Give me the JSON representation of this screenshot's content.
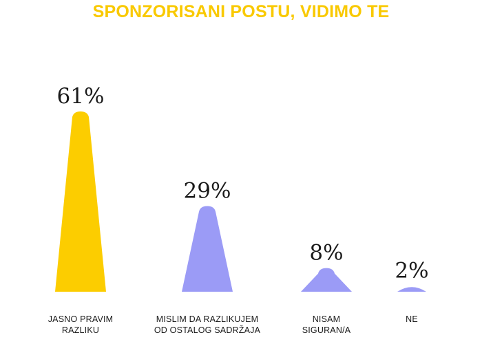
{
  "chart_data": {
    "type": "bar",
    "title": "SPONZORISANI POSTU, VIDIMO TE",
    "categories": [
      [
        "JASNO PRAVIM",
        "RAZLIKU"
      ],
      [
        "MISLIM DA RAZLIKUJEM",
        "OD OSTALOG SADRŽAJA"
      ],
      [
        "NISAM",
        "SIGURAN/A"
      ],
      [
        "NE"
      ]
    ],
    "values": [
      61,
      29,
      8,
      2
    ],
    "value_labels": [
      "61%",
      "29%",
      "8%",
      "2%"
    ],
    "unit": "%",
    "colors": [
      "#fccd00",
      "#9b9bf6",
      "#9b9bf6",
      "#9b9bf6"
    ],
    "title_color": "#f9c900",
    "ylim": [
      0,
      61
    ],
    "grid": false,
    "legend": "none"
  }
}
